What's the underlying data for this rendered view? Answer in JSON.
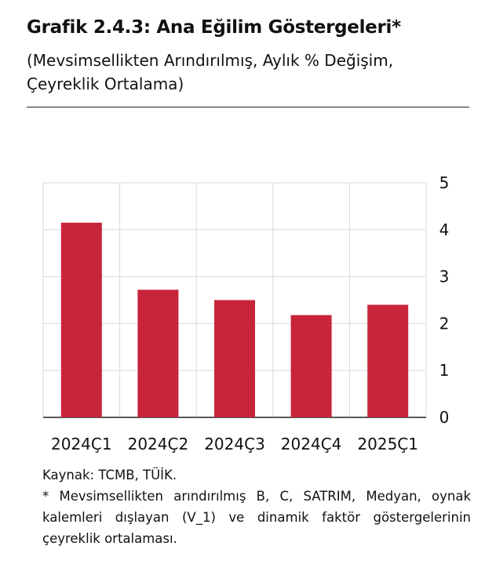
{
  "title": "Grafik 2.4.3: Ana Eğilim Göstergeleri*",
  "subtitle": "(Mevsimsellikten Arındırılmış, Aylık % Değişim, Çeyreklik Ortalama)",
  "colors": {
    "bar": "#c8253a",
    "grid": "#d9d9d9",
    "axis": "#222222"
  },
  "chart_data": {
    "type": "bar",
    "categories": [
      "2024Ç1",
      "2024Ç2",
      "2024Ç3",
      "2024Ç4",
      "2025Ç1"
    ],
    "values": [
      4.15,
      2.72,
      2.5,
      2.18,
      2.4
    ],
    "ylim": [
      0,
      5
    ],
    "yticks": [
      0,
      1,
      2,
      3,
      4,
      5
    ],
    "y_axis_side": "right",
    "grid": true,
    "title": "",
    "xlabel": "",
    "ylabel": ""
  },
  "source": "Kaynak: TCMB, TÜİK.",
  "footnote": "* Mevsimsellikten arındırılmış B, C, SATRIM, Medyan, oynak kalemleri dışlayan (V_1) ve dinamik faktör göstergelerinin çeyreklik ortalaması."
}
